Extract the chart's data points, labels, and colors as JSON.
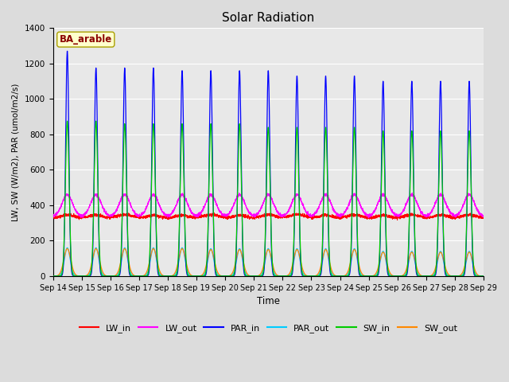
{
  "title": "Solar Radiation",
  "xlabel": "Time",
  "ylabel": "LW, SW (W/m2), PAR (umol/m2/s)",
  "site_label": "BA_arable",
  "ylim": [
    0,
    1400
  ],
  "yticks": [
    0,
    200,
    400,
    600,
    800,
    1000,
    1200,
    1400
  ],
  "date_labels": [
    "Sep 14",
    "Sep 15",
    "Sep 16",
    "Sep 17",
    "Sep 18",
    "Sep 19",
    "Sep 20",
    "Sep 21",
    "Sep 22",
    "Sep 23",
    "Sep 24",
    "Sep 25",
    "Sep 26",
    "Sep 27",
    "Sep 28",
    "Sep 29"
  ],
  "n_days": 15,
  "colors": {
    "LW_in": "#ff0000",
    "LW_out": "#ff00ff",
    "PAR_in": "#0000ff",
    "PAR_out": "#00ccff",
    "SW_in": "#00cc00",
    "SW_out": "#ff8800"
  },
  "background_color": "#dcdcdc",
  "plot_bg": "#e8e8e8",
  "grid_color": "#ffffff",
  "figsize": [
    6.4,
    4.8
  ],
  "dpi": 100
}
